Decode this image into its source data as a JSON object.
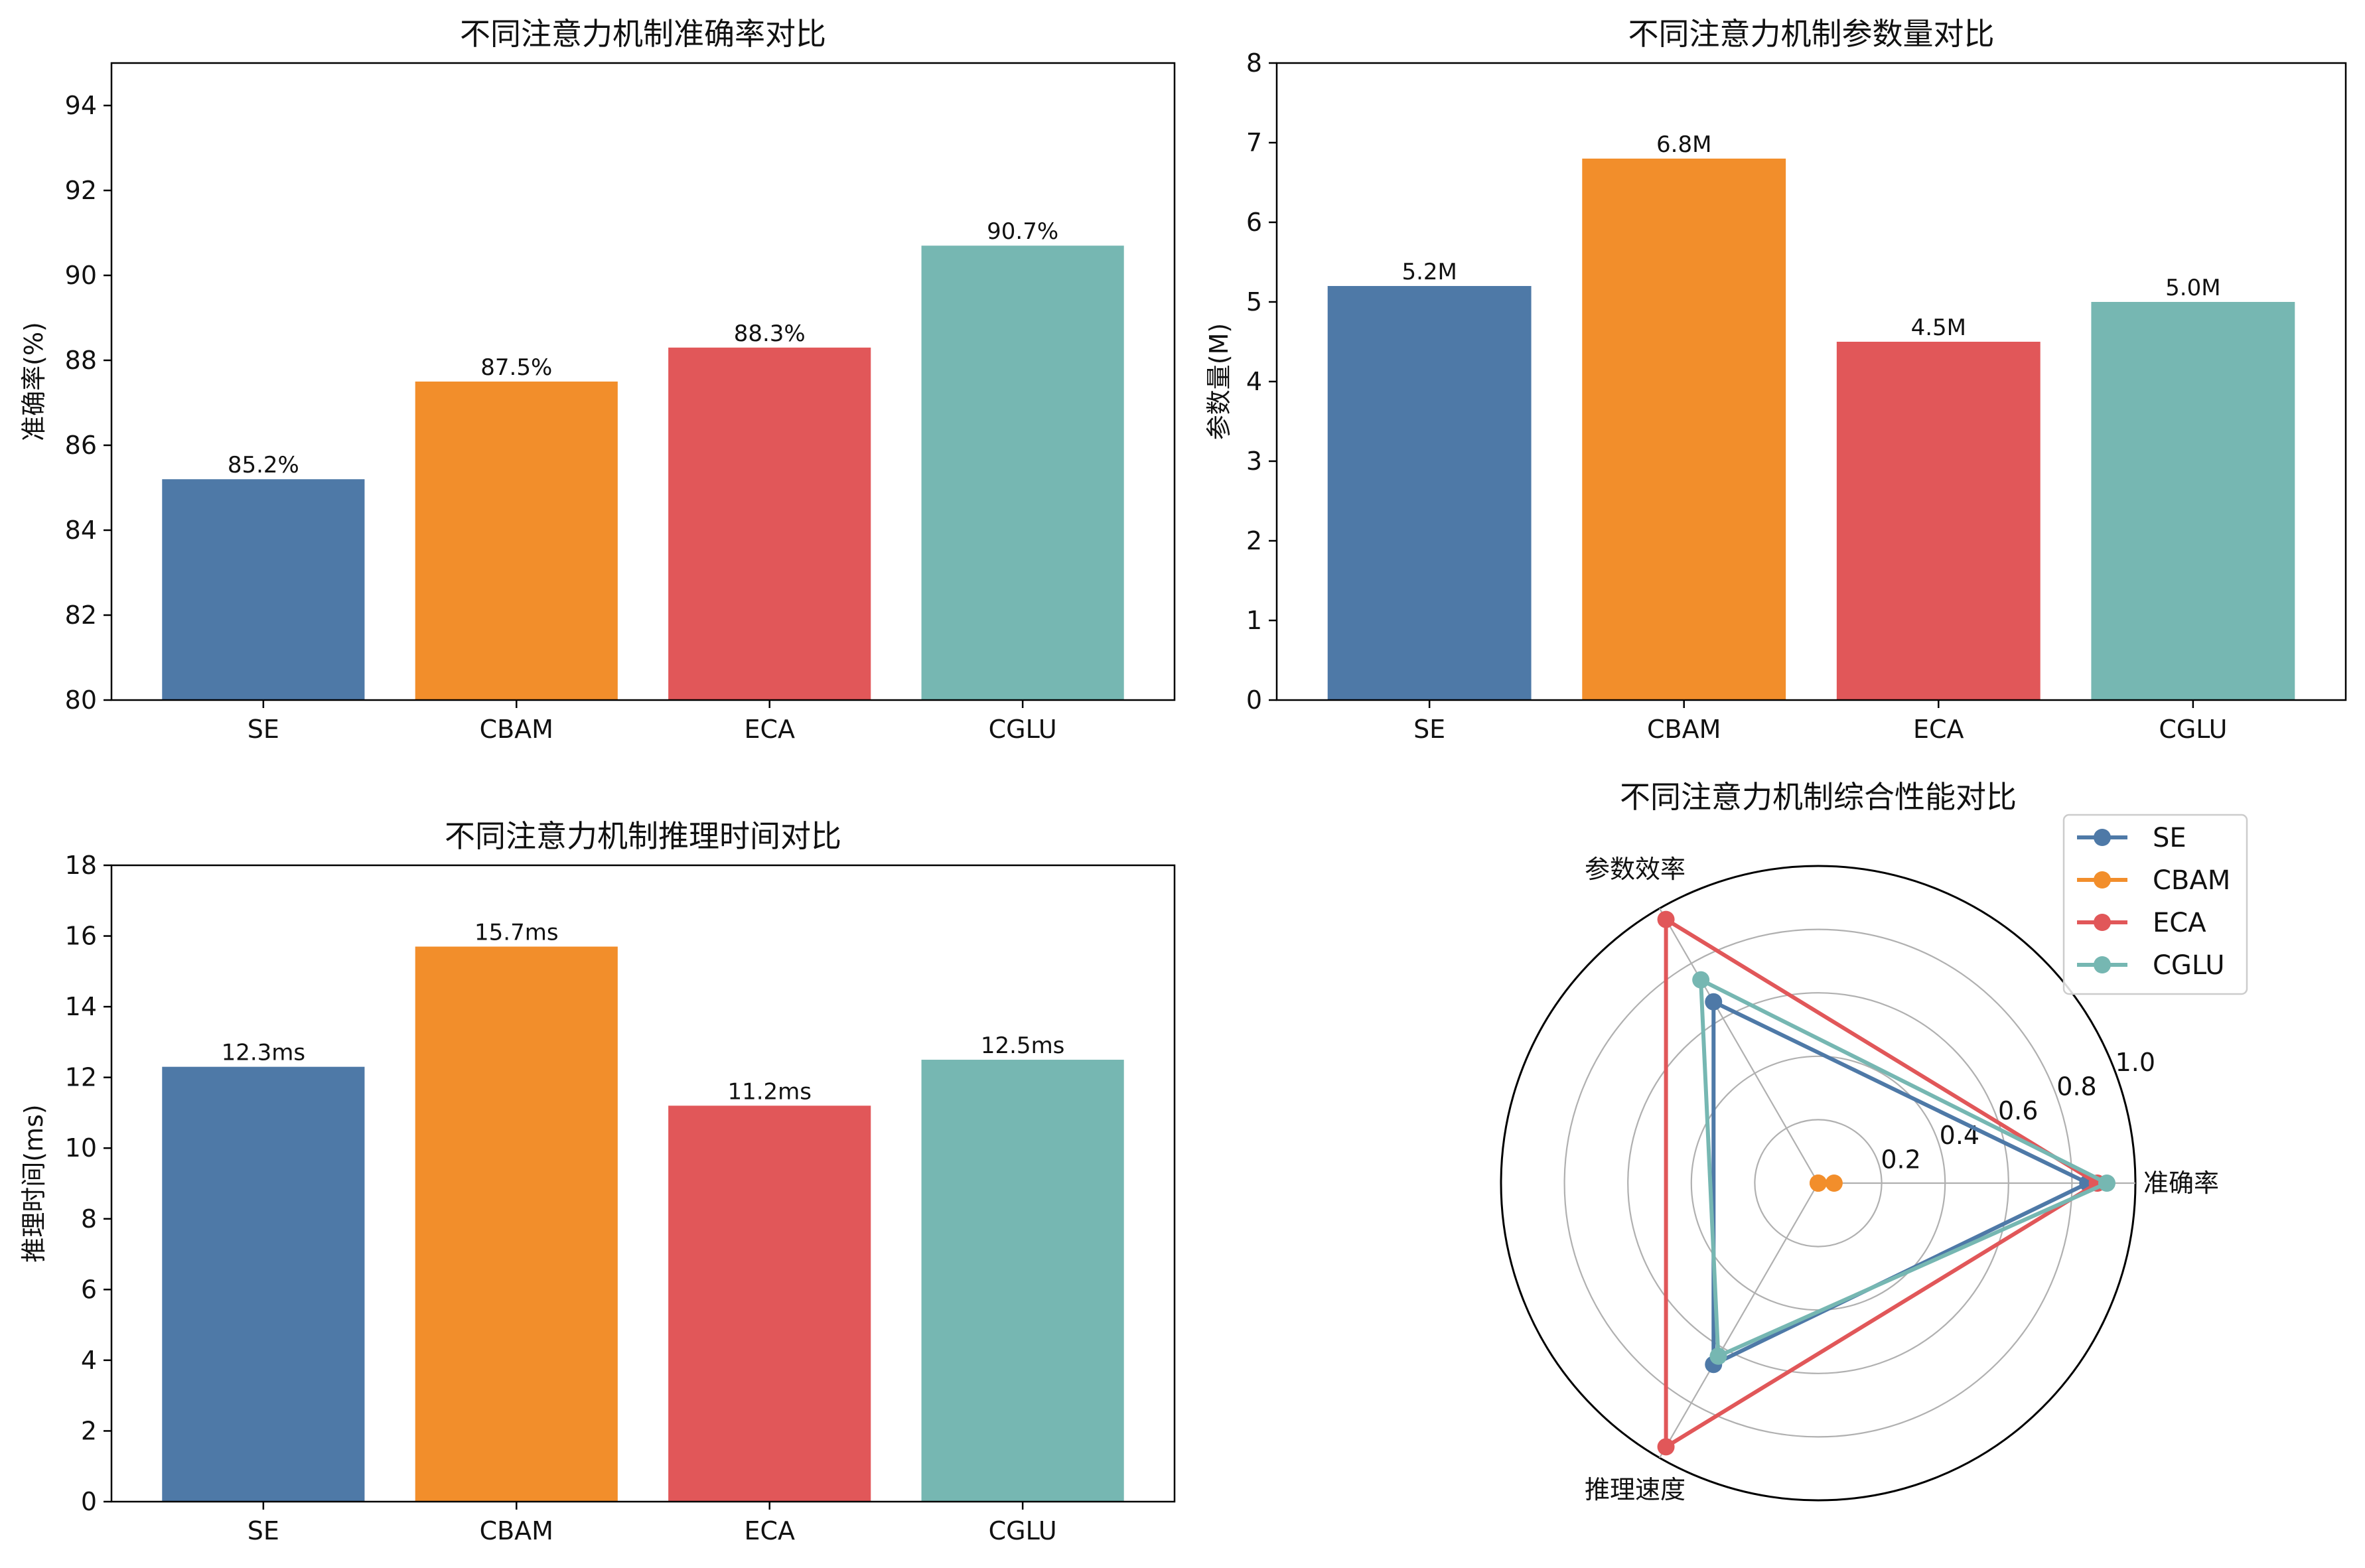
{
  "chart_data": [
    {
      "type": "bar",
      "title": "不同注意力机制准确率对比",
      "xlabel": "",
      "ylabel": "准确率(%)",
      "categories": [
        "SE",
        "CBAM",
        "ECA",
        "CGLU"
      ],
      "values": [
        85.2,
        87.5,
        88.3,
        90.7
      ],
      "value_labels": [
        "85.2%",
        "87.5%",
        "88.3%",
        "90.7%"
      ],
      "ylim": [
        80,
        95
      ],
      "yticks": [
        80,
        82,
        84,
        86,
        88,
        90,
        92,
        94
      ],
      "grid": false
    },
    {
      "type": "bar",
      "title": "不同注意力机制参数量对比",
      "xlabel": "",
      "ylabel": "参数量(M)",
      "categories": [
        "SE",
        "CBAM",
        "ECA",
        "CGLU"
      ],
      "values": [
        5.2,
        6.8,
        4.5,
        5.0
      ],
      "value_labels": [
        "5.2M",
        "6.8M",
        "4.5M",
        "5.0M"
      ],
      "ylim": [
        0,
        8
      ],
      "yticks": [
        0,
        1,
        2,
        3,
        4,
        5,
        6,
        7,
        8
      ],
      "grid": false
    },
    {
      "type": "bar",
      "title": "不同注意力机制推理时间对比",
      "xlabel": "",
      "ylabel": "推理时间(ms)",
      "categories": [
        "SE",
        "CBAM",
        "ECA",
        "CGLU"
      ],
      "values": [
        12.3,
        15.7,
        11.2,
        12.5
      ],
      "value_labels": [
        "12.3ms",
        "15.7ms",
        "11.2ms",
        "12.5ms"
      ],
      "ylim": [
        0,
        18
      ],
      "yticks": [
        0,
        2,
        4,
        6,
        8,
        10,
        12,
        14,
        16,
        18
      ],
      "grid": false
    },
    {
      "type": "radar",
      "title": "不同注意力机制综合性能对比",
      "axes": [
        "准确率",
        "参数效率",
        "推理速度"
      ],
      "rlim": [
        0,
        1.0
      ],
      "rticks": [
        0.2,
        0.4,
        0.6,
        0.8,
        1.0
      ],
      "rtick_labels": [
        "0.2",
        "0.4",
        "0.6",
        "0.8",
        "1.0"
      ],
      "legend_position": "top-right",
      "series": [
        {
          "name": "SE",
          "values": [
            0.85,
            0.66,
            0.66
          ]
        },
        {
          "name": "CBAM",
          "values": [
            0.05,
            0.0,
            0.0
          ]
        },
        {
          "name": "ECA",
          "values": [
            0.88,
            0.96,
            0.96
          ]
        },
        {
          "name": "CGLU",
          "values": [
            0.91,
            0.74,
            0.63
          ]
        }
      ]
    }
  ],
  "colors": {
    "SE": "#4e79a7",
    "CBAM": "#f28e2b",
    "ECA": "#e15759",
    "CGLU": "#76b7b2",
    "axis": "#000000",
    "grid": "#b0b0b0"
  }
}
